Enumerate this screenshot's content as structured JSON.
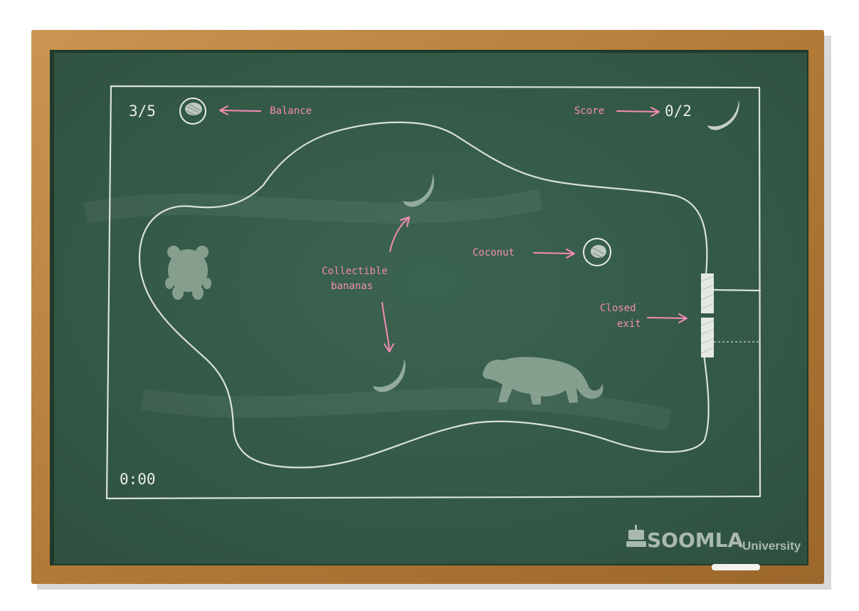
{
  "hud": {
    "balance_value": "3/5",
    "score_value": "0/2",
    "timer": "0:00"
  },
  "annotations": {
    "balance": "Balance",
    "score": "Score",
    "coconut": "Coconut",
    "collectible_line1": "Collectible",
    "collectible_line2": "bananas",
    "exit_line1": "Closed",
    "exit_line2": "exit"
  },
  "brand": {
    "name": "SOOMLA",
    "suffix": "University"
  },
  "colors": {
    "board": "#355a47",
    "frame": "#b8823d",
    "chalk": "#e9ede6",
    "pink_chalk": "#f58bb5"
  },
  "icons": [
    "coconut-icon",
    "banana-icon",
    "monkey-icon",
    "panther-icon",
    "exit-gate-icon",
    "robot-logo-icon"
  ]
}
